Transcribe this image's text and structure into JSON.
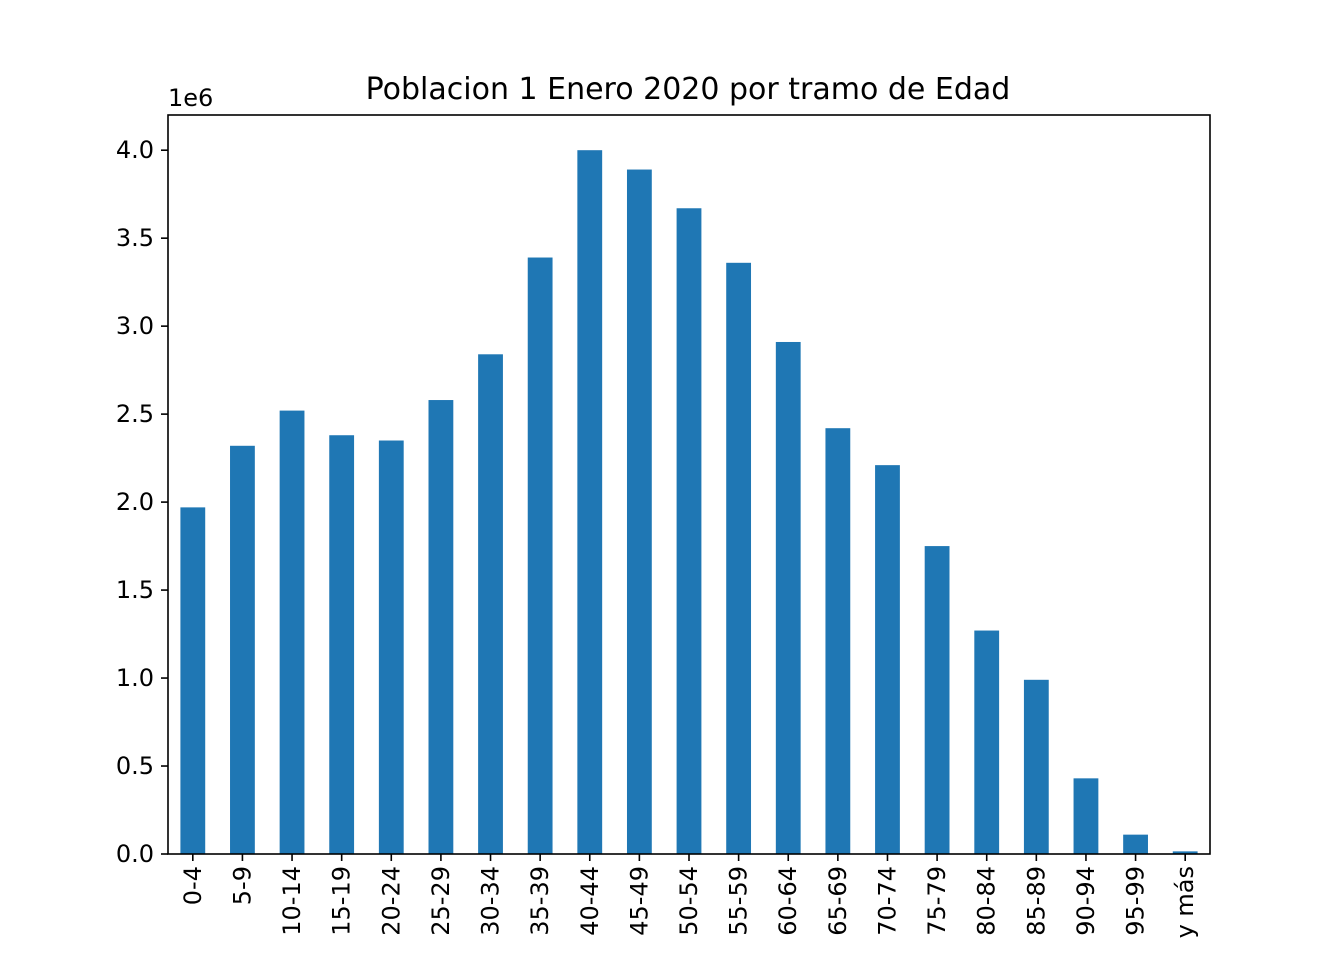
{
  "chart_data": {
    "type": "bar",
    "title": "Poblacion 1 Enero 2020 por tramo de Edad",
    "xlabel": "",
    "ylabel": "",
    "y_offset_label": "1e6",
    "categories": [
      "0-4",
      "5-9",
      "10-14",
      "15-19",
      "20-24",
      "25-29",
      "30-34",
      "35-39",
      "40-44",
      "45-49",
      "50-54",
      "55-59",
      "60-64",
      "65-69",
      "70-74",
      "75-79",
      "80-84",
      "85-89",
      "90-94",
      "95-99",
      "y más"
    ],
    "values": [
      1970000,
      2320000,
      2520000,
      2380000,
      2350000,
      2580000,
      2840000,
      3390000,
      4000000,
      3890000,
      3670000,
      3360000,
      2910000,
      2420000,
      2210000,
      1750000,
      1270000,
      990000,
      430000,
      110000,
      15000
    ],
    "ylim": [
      0,
      4200000
    ],
    "yticks": [
      0,
      500000,
      1000000,
      1500000,
      2000000,
      2500000,
      3000000,
      3500000,
      4000000
    ],
    "ytick_labels": [
      "0.0",
      "0.5",
      "1.0",
      "1.5",
      "2.0",
      "2.5",
      "3.0",
      "3.5",
      "4.0"
    ],
    "bar_color": "#1f77b4",
    "legend": false,
    "grid": false
  }
}
